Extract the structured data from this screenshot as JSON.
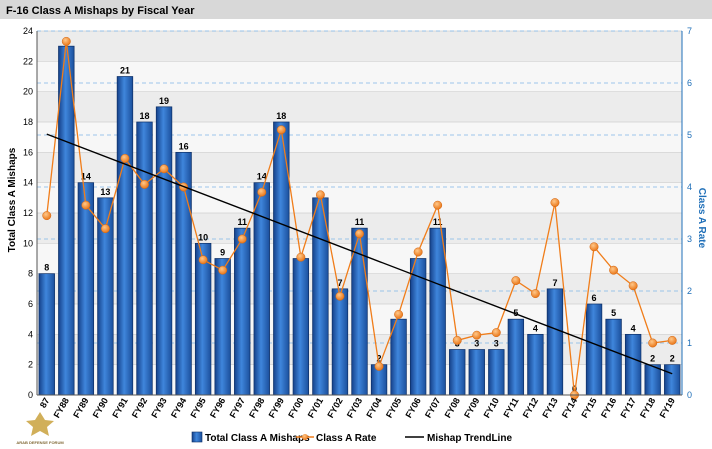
{
  "chart_data": {
    "type": "bar",
    "title": "F-16 Class A Mishaps by Fiscal Year",
    "ylabel": "Total Class A Mishaps",
    "y2label": "Class A Rate",
    "ylim": [
      0,
      24
    ],
    "y2lim": [
      0,
      7
    ],
    "yticks": [
      0,
      2,
      4,
      6,
      8,
      10,
      12,
      14,
      16,
      18,
      20,
      22,
      24
    ],
    "y2ticks": [
      0,
      1,
      2,
      3,
      4,
      5,
      6,
      7
    ],
    "grid": true,
    "legend_position": "bottom",
    "categories": [
      "FY87",
      "FY88",
      "FY89",
      "FY90",
      "FY91",
      "FY92",
      "FY93",
      "FY94",
      "FY95",
      "FY96",
      "FY97",
      "FY98",
      "FY99",
      "FY00",
      "FY01",
      "FY02",
      "FY03",
      "FY04",
      "FY05",
      "FY06",
      "FY07",
      "FY08",
      "FY09",
      "FY10",
      "FY11",
      "FY12",
      "FY13",
      "FY14",
      "FY15",
      "FY16",
      "FY17",
      "FY18",
      "FY19"
    ],
    "category_display": [
      "87",
      "FY88",
      "FY89",
      "FY90",
      "FY91",
      "FY92",
      "FY93",
      "FY94",
      "FY95",
      "FY96",
      "FY97",
      "FY98",
      "FY99",
      "FY00",
      "FY01",
      "FY02",
      "FY03",
      "FY04",
      "FY05",
      "FY06",
      "FY07",
      "FY08",
      "FY09",
      "FY10",
      "FY11",
      "FY12",
      "FY13",
      "FY14",
      "FY15",
      "FY16",
      "FY17",
      "FY18",
      "FY19"
    ],
    "series": [
      {
        "name": "Total Class A Mishaps",
        "type": "bar",
        "axis": "left",
        "color": "#2b6cc4",
        "values": [
          8,
          23,
          14,
          13,
          21,
          18,
          19,
          16,
          10,
          9,
          11,
          14,
          18,
          9,
          13,
          7,
          11,
          2,
          5,
          9,
          11,
          3,
          3,
          3,
          5,
          4,
          7,
          0,
          6,
          5,
          4,
          2,
          2
        ]
      },
      {
        "name": "Class A Rate",
        "type": "line",
        "axis": "right",
        "color": "#f07d1a",
        "values": [
          3.45,
          6.8,
          3.65,
          3.2,
          4.55,
          4.05,
          4.35,
          4.0,
          2.6,
          2.4,
          3.0,
          3.9,
          5.1,
          2.65,
          3.85,
          1.9,
          3.1,
          0.55,
          1.55,
          2.75,
          3.65,
          1.05,
          1.15,
          1.2,
          2.2,
          1.95,
          3.7,
          0.0,
          2.85,
          2.4,
          2.1,
          1.0,
          1.05
        ]
      },
      {
        "name": "Mishap TrendLine",
        "type": "line",
        "axis": "left",
        "color": "#000000",
        "start": 17.2,
        "end": 1.4
      }
    ],
    "data_labels": [
      "8",
      "",
      "14",
      "13",
      "21",
      "18",
      "19",
      "16",
      "10",
      "9",
      "11",
      "14",
      "18",
      "",
      "",
      "7",
      "11",
      "2",
      "",
      "",
      "11",
      "3",
      "3",
      "3",
      "5",
      "4",
      "7",
      "0",
      "6",
      "5",
      "4",
      "2",
      "2"
    ]
  },
  "watermark_text": "ARAB DEFENSE FORUM"
}
